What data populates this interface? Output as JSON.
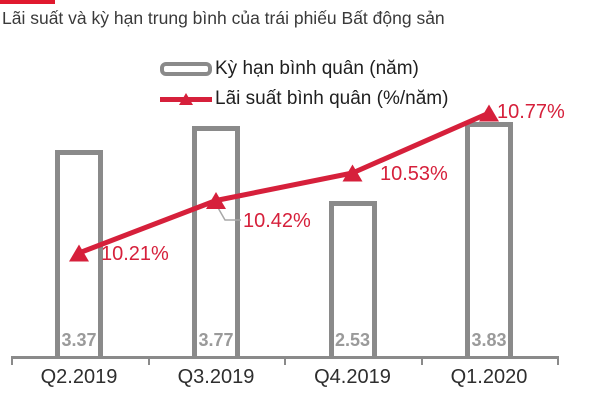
{
  "title": "Lãi suất và kỳ hạn trung bình của trái phiếu Bất động sản",
  "accent_color": "#e0192e",
  "colors": {
    "bar_outline": "#8a8a8a",
    "bar_fill": "#ffffff",
    "bar_value_text": "#9a9a9a",
    "line": "#d6203b",
    "axis": "#8a8a8a",
    "leader_line": "#a8a8a8"
  },
  "legend": {
    "items": [
      {
        "label": "Kỳ hạn bình quân (năm)",
        "marker": "bar-outline-swatch"
      },
      {
        "label": "Lãi suất bình quân (%/năm)",
        "marker": "line-triangle-swatch"
      }
    ]
  },
  "chart_data": {
    "type": "bar",
    "subtype": "combo-bar-line",
    "title": "Lãi suất và kỳ hạn trung bình của trái phiếu Bất động sản",
    "categories": [
      "Q2.2019",
      "Q3.2019",
      "Q4.2019",
      "Q1.2020"
    ],
    "series": [
      {
        "name": "Kỳ hạn bình quân (năm)",
        "type": "bar",
        "values": [
          3.37,
          3.77,
          2.53,
          3.83
        ],
        "data_labels": [
          "3.37",
          "3.77",
          "2.53",
          "3.83"
        ]
      },
      {
        "name": "Lãi suất bình quân (%/năm)",
        "type": "line",
        "values": [
          10.21,
          10.42,
          10.53,
          10.77
        ],
        "data_labels": [
          "10.21%",
          "10.42%",
          "10.53%",
          "10.77%"
        ]
      }
    ],
    "xlabel": "",
    "ylabel": "",
    "legend_position": "top-center",
    "grid": false,
    "bar_axis_implied_range": [
      0,
      3.9
    ],
    "line_axis_implied_range": [
      10.0,
      10.9
    ]
  }
}
